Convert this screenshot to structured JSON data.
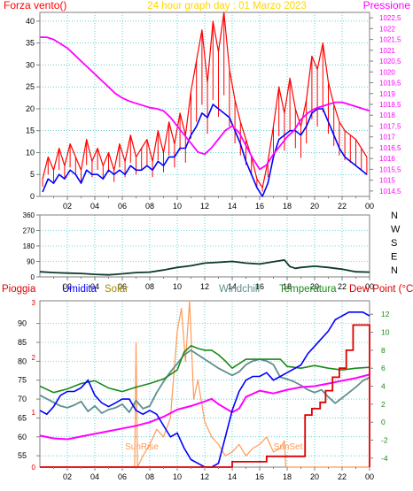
{
  "colors": {
    "background": "#ffffff",
    "plot_bg": "#ffffff",
    "axis": "#7f7f7f",
    "grid": "#00b3b3",
    "wind": "#ff0000",
    "gust": "#0000ff",
    "pressure": "#ff00ff",
    "direction": "#0c3a2c",
    "rain": "#dd0000",
    "humidity": "#0000ff",
    "solar": "#ff9a55",
    "windchill": "#5f8f8f",
    "temperature": "#1a8a1a",
    "dewpoint": "#ff00ff"
  },
  "chart_data": [
    {
      "type": "line",
      "title": "24 hour graph day : 01 Marzo 2023",
      "left_label": "Forza vento()",
      "right_label": "Pressione",
      "x_ticks": [
        "02",
        "04",
        "06",
        "08",
        "10",
        "12",
        "14",
        "16",
        "18",
        "20",
        "22",
        "00"
      ],
      "y_left_ticks": [
        0,
        5,
        10,
        15,
        20,
        25,
        30,
        35,
        40
      ],
      "ylim_left": [
        0,
        42
      ],
      "y_right_ticks": [
        "1014,5",
        "1015",
        "1015,5",
        "1016",
        "1016,5",
        "1017",
        "1017,5",
        "1018",
        "1018,5",
        "1019",
        "1019,5",
        "1020",
        "1020,5",
        "1021",
        "1021,5",
        "1022",
        "1022,5"
      ],
      "ylim_right": [
        1014.25,
        1022.75
      ],
      "grid": true,
      "series": [
        {
          "role": "wind_max",
          "x": [
            0.2,
            0.6,
            1,
            1.4,
            1.8,
            2.2,
            2.6,
            3,
            3.4,
            3.8,
            4.2,
            4.6,
            5,
            5.4,
            5.8,
            6.2,
            6.6,
            7,
            7.4,
            7.8,
            8.2,
            8.6,
            9,
            9.4,
            9.8,
            10.2,
            10.6,
            11,
            11.4,
            11.8,
            12.2,
            12.6,
            13,
            13.4,
            13.8,
            14.2,
            14.6,
            15,
            15.4,
            15.8,
            16.2,
            16.6,
            17,
            17.4,
            17.8,
            18.2,
            18.6,
            19,
            19.4,
            19.8,
            20.2,
            20.6,
            21,
            21.4,
            21.8,
            22.2,
            22.6,
            23,
            23.4,
            23.8
          ],
          "y": [
            4,
            9,
            6,
            11,
            7,
            12,
            9,
            6,
            13,
            8,
            11,
            7,
            10,
            6,
            12,
            8,
            14,
            9,
            11,
            13,
            8,
            15,
            10,
            17,
            12,
            19,
            14,
            24,
            31,
            38,
            26,
            40,
            33,
            42,
            29,
            22,
            17,
            13,
            9,
            4,
            2,
            8,
            16,
            25,
            19,
            27,
            20,
            16,
            22,
            32,
            29,
            35,
            26,
            21,
            17,
            15,
            14,
            13,
            11,
            9
          ]
        },
        {
          "role": "wind_avg",
          "x": [
            0.2,
            0.6,
            1,
            1.4,
            1.8,
            2.2,
            2.6,
            3,
            3.4,
            3.8,
            4.2,
            4.6,
            5,
            5.4,
            5.8,
            6.2,
            6.6,
            7,
            7.4,
            7.8,
            8.2,
            8.6,
            9,
            9.4,
            9.8,
            10.2,
            10.6,
            11,
            11.4,
            11.8,
            12.2,
            12.6,
            13,
            13.4,
            13.8,
            14.2,
            14.6,
            15,
            15.4,
            15.8,
            16.2,
            16.6,
            17,
            17.4,
            17.8,
            18.2,
            18.6,
            19,
            19.4,
            19.8,
            20.2,
            20.6,
            21,
            21.4,
            21.8,
            22.2,
            22.6,
            23,
            23.4,
            23.8
          ],
          "y": [
            1,
            4,
            3,
            5,
            4,
            6,
            5,
            3,
            6,
            5,
            5,
            4,
            6,
            5,
            6,
            5,
            7,
            6,
            6,
            7,
            6,
            8,
            7,
            9,
            9,
            11,
            11,
            14,
            16,
            19,
            18,
            21,
            20,
            19,
            18,
            15,
            12,
            8,
            5,
            2,
            0,
            3,
            9,
            13,
            14,
            15,
            15,
            14,
            16,
            19,
            20,
            20,
            17,
            14,
            11,
            9,
            8,
            7,
            6,
            5
          ]
        },
        {
          "role": "pressure",
          "axis": "right",
          "x": [
            0,
            0.5,
            1,
            1.5,
            2,
            2.5,
            3,
            3.5,
            4,
            4.5,
            5,
            5.5,
            6,
            6.5,
            7,
            7.5,
            8,
            8.5,
            9,
            9.5,
            10,
            10.5,
            11,
            11.5,
            12,
            12.5,
            13,
            13.5,
            14,
            14.5,
            15,
            15.5,
            16,
            16.5,
            17,
            17.5,
            18,
            18.5,
            19,
            19.5,
            20,
            20.5,
            21,
            21.5,
            22,
            22.5,
            23,
            23.5,
            24
          ],
          "y": [
            1021.6,
            1021.6,
            1021.5,
            1021.3,
            1021.1,
            1020.8,
            1020.5,
            1020.2,
            1019.9,
            1019.6,
            1019.3,
            1019.0,
            1018.8,
            1018.65,
            1018.55,
            1018.45,
            1018.35,
            1018.3,
            1018.2,
            1017.9,
            1017.5,
            1017.1,
            1016.7,
            1016.3,
            1016.2,
            1016.5,
            1016.9,
            1017.3,
            1017.5,
            1017.2,
            1016.6,
            1016.0,
            1015.5,
            1015.7,
            1016.2,
            1016.6,
            1017.0,
            1017.3,
            1017.8,
            1018.1,
            1018.3,
            1018.4,
            1018.5,
            1018.6,
            1018.6,
            1018.5,
            1018.4,
            1018.3,
            1018.2
          ]
        }
      ]
    },
    {
      "type": "line",
      "right_labels": [
        "N",
        "W",
        "S",
        "E",
        "N"
      ],
      "y_ticks": [
        0,
        90,
        180,
        270,
        360
      ],
      "ylim": [
        0,
        360
      ],
      "x_ticks": [
        "02",
        "04",
        "06",
        "08",
        "10",
        "12",
        "14",
        "16",
        "18",
        "20",
        "22",
        "00"
      ],
      "grid": true,
      "series": [
        {
          "role": "wind_direction",
          "x": [
            0,
            1,
            2,
            3,
            4,
            5,
            6,
            7,
            8,
            9,
            10,
            11,
            12,
            13,
            14,
            15,
            16,
            17,
            17.8,
            18.2,
            18.6,
            19,
            20,
            21,
            22,
            23,
            24
          ],
          "y": [
            30,
            25,
            22,
            20,
            15,
            12,
            18,
            25,
            28,
            40,
            55,
            65,
            80,
            85,
            90,
            80,
            75,
            88,
            98,
            60,
            50,
            55,
            62,
            55,
            45,
            30,
            28
          ]
        }
      ]
    },
    {
      "type": "line",
      "legend": [
        "Pioggia",
        "Umidita",
        "Solar",
        "Windchill",
        "Temperatura",
        "Dew Point (°C)"
      ],
      "y_left_ticks": [
        55,
        60,
        65,
        70,
        75,
        80,
        85,
        90
      ],
      "ylim_left": [
        52,
        96
      ],
      "y_right_ticks": [
        -4,
        -2,
        0,
        2,
        4,
        6,
        8,
        10,
        12
      ],
      "ylim_right": [
        -5,
        13.5
      ],
      "left_inner_ticks": [
        0,
        1,
        2,
        3
      ],
      "x_ticks": [
        "02",
        "04",
        "06",
        "08",
        "10",
        "12",
        "14",
        "16",
        "18",
        "20",
        "22",
        "00"
      ],
      "annotations": [
        "SunRise",
        "SunSet"
      ],
      "grid": true,
      "series": [
        {
          "role": "rain",
          "axis": "right",
          "x": [
            0,
            14,
            14,
            16.5,
            16.5,
            19.3,
            19.3,
            19.8,
            19.8,
            20.4,
            20.4,
            20.8,
            20.8,
            21.3,
            21.3,
            21.8,
            21.8,
            22.3,
            22.3,
            22.8,
            22.8,
            24,
            24
          ],
          "y": [
            -5,
            -5,
            -4.4,
            -4.4,
            -3.8,
            -3.8,
            0.8,
            0.8,
            1.5,
            1.5,
            2.2,
            2.2,
            3.5,
            3.5,
            5.0,
            5.0,
            6.0,
            6.0,
            8.0,
            8.0,
            10.8,
            10.8,
            -5
          ]
        },
        {
          "role": "humidity",
          "x": [
            0,
            0.5,
            1,
            1.5,
            2,
            2.5,
            3,
            3.5,
            4,
            4.5,
            5,
            5.5,
            6,
            6.5,
            7,
            7.5,
            8,
            8.5,
            9,
            9.5,
            10,
            10.5,
            11,
            11.5,
            12,
            12.5,
            13,
            13.5,
            14,
            14.5,
            15,
            15.5,
            16,
            16.5,
            17,
            17.5,
            18,
            18.5,
            19,
            19.5,
            20,
            20.5,
            21,
            21.5,
            22,
            22.5,
            23,
            23.5,
            24
          ],
          "y": [
            67,
            66,
            68,
            71,
            72,
            72,
            73,
            75,
            71,
            69,
            68,
            69,
            70,
            70,
            67,
            66,
            67,
            66,
            63,
            60,
            61,
            57,
            54,
            53,
            52,
            52,
            53,
            60,
            67,
            72,
            75,
            76,
            76,
            77,
            75,
            76,
            77,
            78,
            79,
            82,
            84,
            86,
            88,
            91,
            92,
            93,
            93,
            93,
            92
          ]
        },
        {
          "role": "solar",
          "x": [
            0,
            6.9,
            7,
            7.1,
            7.5,
            8,
            8.5,
            9,
            9.5,
            10,
            10.3,
            10.6,
            10.9,
            11.2,
            11.5,
            12,
            12.5,
            13,
            13.5,
            14,
            14.5,
            15,
            15.5,
            16,
            16.5,
            17,
            17.5,
            17.8,
            17.9,
            18,
            24
          ],
          "y": [
            52,
            52,
            85,
            52,
            55,
            58,
            62,
            60,
            65,
            88,
            94,
            80,
            96,
            70,
            75,
            64,
            60,
            58,
            55,
            56,
            58,
            55,
            57,
            58,
            60,
            56,
            57,
            59,
            52,
            52,
            52
          ]
        },
        {
          "role": "windchill",
          "axis": "right",
          "x": [
            0,
            0.5,
            1,
            1.5,
            2,
            2.5,
            3,
            3.5,
            4,
            4.5,
            5,
            5.5,
            6,
            6.5,
            7,
            7.5,
            8,
            8.5,
            9,
            9.5,
            10,
            10.5,
            11,
            11.5,
            12,
            12.5,
            13,
            13.5,
            14,
            14.5,
            15,
            15.5,
            16,
            16.5,
            17,
            17.5,
            18,
            18.5,
            19,
            19.5,
            20,
            20.5,
            21,
            21.5,
            22,
            22.5,
            23,
            23.5,
            24
          ],
          "y": [
            3,
            2.6,
            2.2,
            1.8,
            1.6,
            1.9,
            2.3,
            1.2,
            1.8,
            1.0,
            1.4,
            1.6,
            2.0,
            1.1,
            2.4,
            1.5,
            1.8,
            3.3,
            4.5,
            5.6,
            6.5,
            7.5,
            8.0,
            7.5,
            7.0,
            6.5,
            6.0,
            5.6,
            5.2,
            5.6,
            6.4,
            6.8,
            7.0,
            6.8,
            6.4,
            5.0,
            4.8,
            4.5,
            4.1,
            3.6,
            3.3,
            3.6,
            2.8,
            2.1,
            2.7,
            3.3,
            3.9,
            4.6,
            5.0
          ]
        },
        {
          "role": "temperature",
          "axis": "right",
          "x": [
            0,
            1,
            2,
            3,
            4,
            5,
            6,
            7,
            8,
            9,
            10,
            10.5,
            11,
            11.5,
            12,
            12.5,
            13,
            13.5,
            14,
            14.5,
            15,
            15.5,
            16,
            16.5,
            17,
            17.5,
            18,
            19,
            20,
            21,
            22,
            23,
            24
          ],
          "y": [
            4.0,
            3.3,
            3.7,
            4.3,
            4.6,
            3.8,
            3.4,
            3.9,
            4.3,
            4.8,
            5.8,
            7.8,
            8.5,
            8.2,
            8.0,
            8.0,
            7.5,
            6.8,
            6.0,
            6.5,
            7.0,
            7.0,
            7.0,
            7.0,
            7.0,
            7.0,
            6.2,
            6.0,
            6.3,
            6.0,
            5.8,
            6.0,
            6.1
          ]
        },
        {
          "role": "dewpoint",
          "axis": "right",
          "x": [
            0,
            1,
            2,
            3,
            4,
            5,
            6,
            7,
            8,
            9,
            10,
            11,
            12,
            12.5,
            13,
            14,
            14.5,
            15,
            16,
            17,
            18,
            19,
            20,
            21,
            22,
            23,
            24
          ],
          "y": [
            -1.5,
            -1.8,
            -1.9,
            -1.6,
            -1.3,
            -1.0,
            -0.7,
            -0.4,
            0.0,
            0.6,
            1.4,
            1.8,
            2.3,
            2.6,
            2.0,
            1.1,
            1.5,
            2.8,
            3.5,
            3.2,
            3.6,
            3.9,
            4.0,
            4.3,
            4.6,
            4.9,
            5.3
          ]
        }
      ]
    }
  ]
}
